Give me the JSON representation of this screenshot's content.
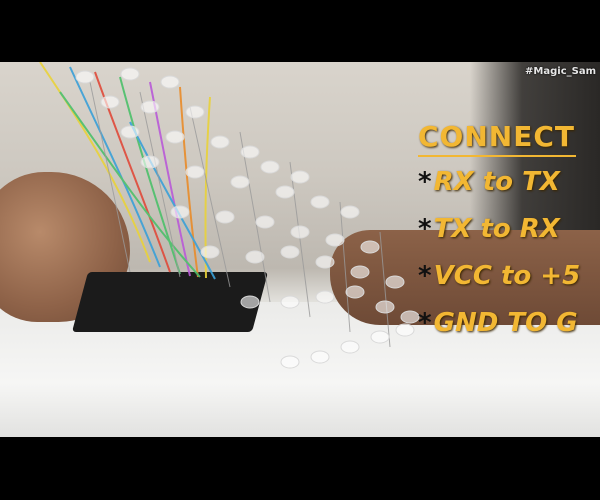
{
  "watermark": "#Magic_Sam",
  "caption": {
    "title": "CONNECT",
    "lines": [
      {
        "bullet": "*",
        "text": "RX to TX"
      },
      {
        "bullet": "*",
        "text": "TX to RX"
      },
      {
        "bullet": "*",
        "text": "VCC to +5"
      },
      {
        "bullet": "*",
        "text": "GND TO G"
      }
    ]
  },
  "colors": {
    "caption": "#f2b733",
    "letterbox": "#000000"
  }
}
